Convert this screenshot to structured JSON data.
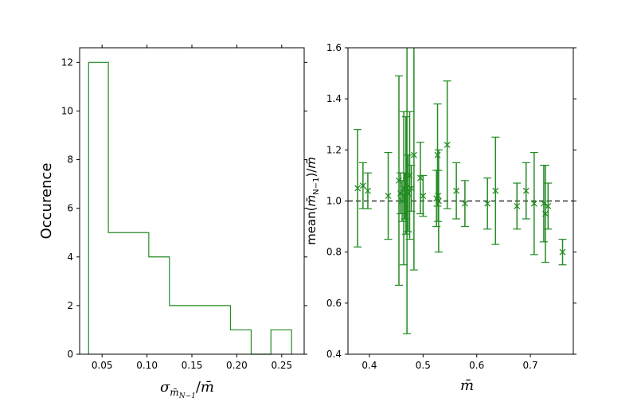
{
  "chart_data": [
    {
      "type": "histogram",
      "xlabel": "σ_{m̄_{N−1}}/m̄",
      "ylabel": "Occurence",
      "xlim": [
        0.025,
        0.275
      ],
      "ylim": [
        0,
        12.6
      ],
      "xticks": [
        "0.05",
        "0.10",
        "0.15",
        "0.20",
        "0.25"
      ],
      "yticks": [
        "0",
        "2",
        "4",
        "6",
        "8",
        "10",
        "12"
      ],
      "bins": [
        {
          "x0": 0.035,
          "x1": 0.057,
          "count": 12
        },
        {
          "x0": 0.057,
          "x1": 0.08,
          "count": 5
        },
        {
          "x0": 0.08,
          "x1": 0.102,
          "count": 5
        },
        {
          "x0": 0.102,
          "x1": 0.125,
          "count": 4
        },
        {
          "x0": 0.125,
          "x1": 0.148,
          "count": 2
        },
        {
          "x0": 0.148,
          "x1": 0.17,
          "count": 2
        },
        {
          "x0": 0.17,
          "x1": 0.193,
          "count": 2
        },
        {
          "x0": 0.193,
          "x1": 0.216,
          "count": 1
        },
        {
          "x0": 0.216,
          "x1": 0.238,
          "count": 0
        },
        {
          "x0": 0.238,
          "x1": 0.261,
          "count": 1
        }
      ],
      "color": "#228B22",
      "grid": false
    },
    {
      "type": "scatter",
      "xlabel": "m̄",
      "ylabel": "mean(m̄_{N−1})/m̄",
      "xlim": [
        0.36,
        0.78
      ],
      "ylim": [
        0.4,
        1.6
      ],
      "xticks": [
        "0.4",
        "0.5",
        "0.6",
        "0.7"
      ],
      "yticks": [
        "0.4",
        "0.6",
        "0.8",
        "1.0",
        "1.2",
        "1.4",
        "1.6"
      ],
      "marker": "x",
      "color": "#228B22",
      "reference_line": {
        "y": 1.0,
        "style": "dashed",
        "color": "#333333"
      },
      "points": [
        {
          "x": 0.378,
          "y": 1.05,
          "err": 0.23
        },
        {
          "x": 0.388,
          "y": 1.06,
          "err": 0.09
        },
        {
          "x": 0.397,
          "y": 1.04,
          "err": 0.07
        },
        {
          "x": 0.435,
          "y": 1.02,
          "err": 0.17
        },
        {
          "x": 0.455,
          "y": 1.08,
          "err": 0.41
        },
        {
          "x": 0.458,
          "y": 1.03,
          "err": 0.08
        },
        {
          "x": 0.461,
          "y": 1.0,
          "err": 0.08
        },
        {
          "x": 0.464,
          "y": 1.05,
          "err": 0.3
        },
        {
          "x": 0.466,
          "y": 1.02,
          "err": 0.09
        },
        {
          "x": 0.468,
          "y": 1.1,
          "err": 0.23
        },
        {
          "x": 0.47,
          "y": 1.05,
          "err": 0.57
        },
        {
          "x": 0.472,
          "y": 1.03,
          "err": 0.15
        },
        {
          "x": 0.475,
          "y": 1.1,
          "err": 0.25
        },
        {
          "x": 0.478,
          "y": 1.05,
          "err": 0.09
        },
        {
          "x": 0.483,
          "y": 1.18,
          "err": 0.45
        },
        {
          "x": 0.495,
          "y": 1.09,
          "err": 0.14
        },
        {
          "x": 0.5,
          "y": 1.02,
          "err": 0.08
        },
        {
          "x": 0.525,
          "y": 1.01,
          "err": 0.11
        },
        {
          "x": 0.527,
          "y": 1.18,
          "err": 0.2
        },
        {
          "x": 0.528,
          "y": 1.02,
          "err": 0.1
        },
        {
          "x": 0.529,
          "y": 1.0,
          "err": 0.2
        },
        {
          "x": 0.545,
          "y": 1.22,
          "err": 0.25
        },
        {
          "x": 0.562,
          "y": 1.04,
          "err": 0.11
        },
        {
          "x": 0.578,
          "y": 0.99,
          "err": 0.09
        },
        {
          "x": 0.62,
          "y": 0.99,
          "err": 0.1
        },
        {
          "x": 0.635,
          "y": 1.04,
          "err": 0.21
        },
        {
          "x": 0.675,
          "y": 0.98,
          "err": 0.09
        },
        {
          "x": 0.692,
          "y": 1.04,
          "err": 0.11
        },
        {
          "x": 0.707,
          "y": 0.99,
          "err": 0.2
        },
        {
          "x": 0.725,
          "y": 0.99,
          "err": 0.15
        },
        {
          "x": 0.728,
          "y": 0.95,
          "err": 0.19
        },
        {
          "x": 0.733,
          "y": 0.98,
          "err": 0.09
        },
        {
          "x": 0.76,
          "y": 0.8,
          "err": 0.05
        }
      ]
    }
  ]
}
